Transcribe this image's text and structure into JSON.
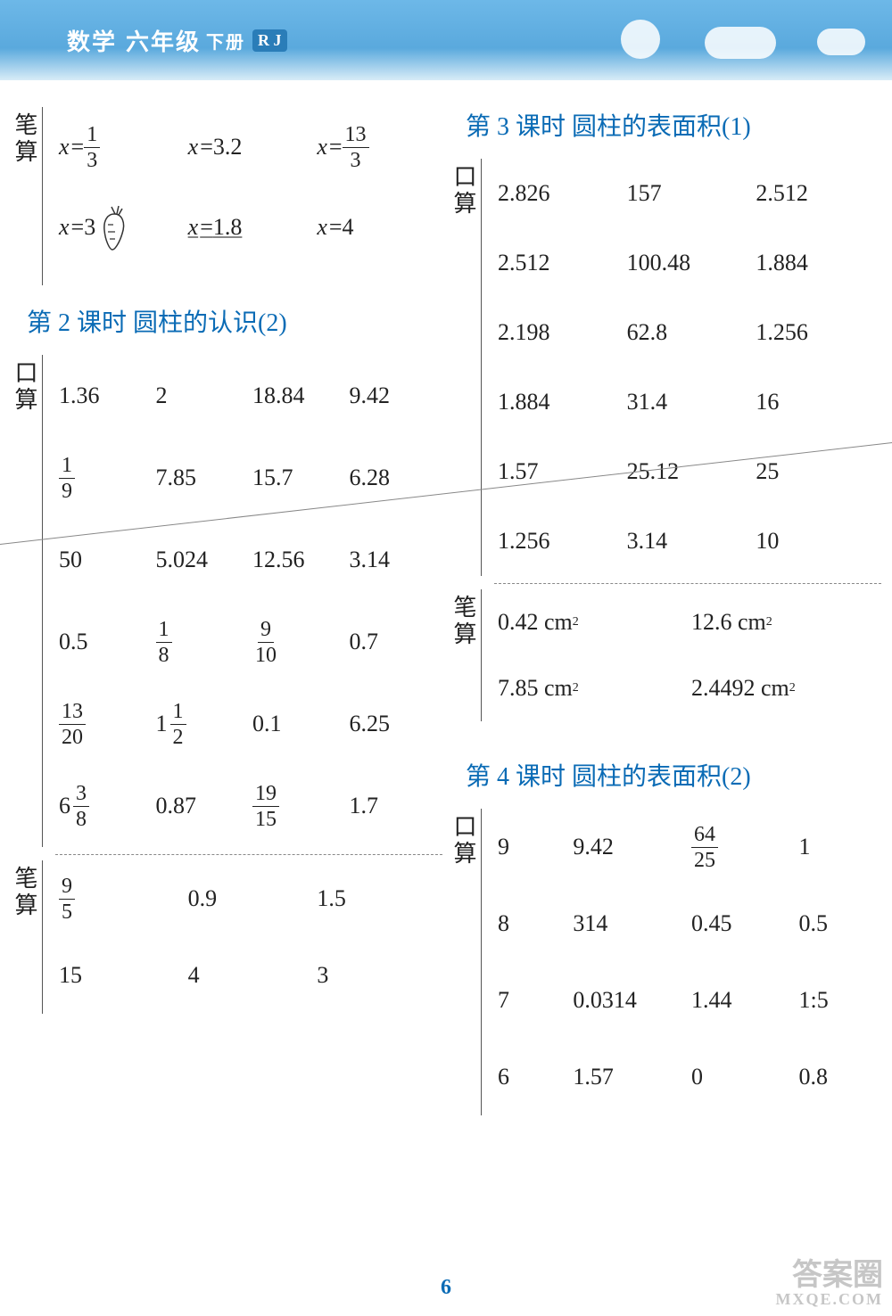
{
  "header": {
    "subject": "数学",
    "grade": "六年级",
    "vol": "下册",
    "badge": "R J"
  },
  "page_number": "6",
  "watermark": {
    "l1": "答案圈",
    "l2": "MXQE.COM"
  },
  "left": {
    "bi_top": {
      "r1": [
        "x = 1/3",
        "x = 3.2",
        "x = 13/3"
      ],
      "r2": [
        "x = 3",
        "x = 1.8",
        "x = 4"
      ]
    },
    "sec2_title": "第 2 课时  圆柱的认识(2)",
    "kou": {
      "rows": [
        [
          "1.36",
          "2",
          "18.84",
          "9.42"
        ],
        [
          "1/9",
          "7.85",
          "15.7",
          "6.28"
        ],
        [
          "50",
          "5.024",
          "12.56",
          "3.14"
        ],
        [
          "0.5",
          "1/8",
          "9/10",
          "0.7"
        ],
        [
          "13/20",
          "1 1/2",
          "0.1",
          "6.25"
        ],
        [
          "6 3/8",
          "0.87",
          "19/15",
          "1.7"
        ]
      ]
    },
    "bi_bot": {
      "rows": [
        [
          "9/5",
          "0.9",
          "1.5"
        ],
        [
          "15",
          "4",
          "3"
        ]
      ]
    }
  },
  "right": {
    "sec3_title": "第 3 课时  圆柱的表面积(1)",
    "kou3": {
      "rows": [
        [
          "2.826",
          "157",
          "2.512"
        ],
        [
          "2.512",
          "100.48",
          "1.884"
        ],
        [
          "2.198",
          "62.8",
          "1.256"
        ],
        [
          "1.884",
          "31.4",
          "16"
        ],
        [
          "1.57",
          "25.12",
          "25"
        ],
        [
          "1.256",
          "3.14",
          "10"
        ]
      ]
    },
    "bi3": {
      "rows": [
        [
          "0.42 cm²",
          "12.6 cm²"
        ],
        [
          "7.85 cm²",
          "2.4492 cm²"
        ]
      ]
    },
    "sec4_title": "第 4 课时  圆柱的表面积(2)",
    "kou4": {
      "rows": [
        [
          "9",
          "9.42",
          "64/25",
          "1"
        ],
        [
          "8",
          "314",
          "0.45",
          "0.5"
        ],
        [
          "7",
          "0.0314",
          "1.44",
          "1:5"
        ],
        [
          "6",
          "1.57",
          "0",
          "0.8"
        ]
      ]
    }
  },
  "colors": {
    "heading": "#0a6bb5",
    "text": "#222222",
    "header_grad_top": "#6db8e8",
    "header_grad_bot": "#d8ecf7"
  }
}
